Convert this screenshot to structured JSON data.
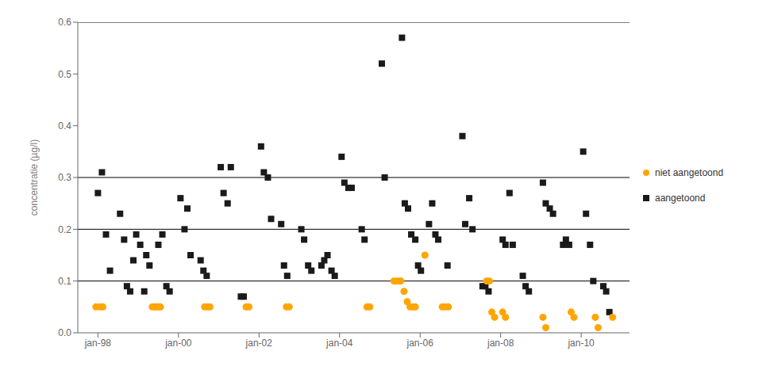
{
  "chart_data": {
    "type": "scatter",
    "y_label": "concentratie (µg/l)",
    "xlim": [
      1997.5,
      2011.2
    ],
    "xticks": [
      {
        "value": 1998,
        "label": "jan-98"
      },
      {
        "value": 2000,
        "label": "jan-00"
      },
      {
        "value": 2002,
        "label": "jan-02"
      },
      {
        "value": 2004,
        "label": "jan-04"
      },
      {
        "value": 2006,
        "label": "jan-06"
      },
      {
        "value": 2008,
        "label": "jan-08"
      },
      {
        "value": 2010,
        "label": "jan-10"
      }
    ],
    "ylim": [
      0,
      0.6
    ],
    "yticks": [
      {
        "value": 0,
        "label": "0.0"
      },
      0.1,
      0.2,
      0.3,
      0.4,
      0.5,
      0.6
    ],
    "hlines": [
      0.1,
      0.2,
      0.3,
      0.6
    ],
    "grid": false,
    "legend": "right",
    "series": [
      {
        "name": "aangetoond",
        "color": "#1a1a1a",
        "marker": "square",
        "x": [
          1998.0,
          1998.1,
          1998.2,
          1998.3,
          1998.55,
          1998.65,
          1998.72,
          1998.8,
          1998.88,
          1998.95,
          1999.05,
          1999.15,
          1999.2,
          1999.28,
          1999.5,
          1999.6,
          1999.7,
          1999.78,
          2000.05,
          2000.15,
          2000.22,
          2000.3,
          2000.55,
          2000.62,
          2000.7,
          2001.05,
          2001.12,
          2001.22,
          2001.3,
          2001.55,
          2001.62,
          2002.05,
          2002.12,
          2002.22,
          2002.3,
          2002.55,
          2002.62,
          2002.7,
          2003.05,
          2003.12,
          2003.22,
          2003.3,
          2003.55,
          2003.62,
          2003.7,
          2003.8,
          2003.88,
          2004.05,
          2004.12,
          2004.22,
          2004.3,
          2004.55,
          2004.62,
          2005.05,
          2005.12,
          2005.55,
          2005.62,
          2005.7,
          2005.78,
          2005.88,
          2005.95,
          2006.02,
          2006.22,
          2006.3,
          2006.38,
          2006.45,
          2006.68,
          2007.05,
          2007.12,
          2007.22,
          2007.3,
          2007.55,
          2007.62,
          2007.7,
          2008.05,
          2008.12,
          2008.22,
          2008.3,
          2008.55,
          2008.62,
          2008.7,
          2009.05,
          2009.12,
          2009.22,
          2009.3,
          2009.55,
          2009.62,
          2009.7,
          2010.05,
          2010.12,
          2010.22,
          2010.3,
          2010.55,
          2010.62,
          2010.7
        ],
        "values": [
          0.27,
          0.31,
          0.19,
          0.12,
          0.23,
          0.18,
          0.09,
          0.08,
          0.14,
          0.19,
          0.17,
          0.08,
          0.15,
          0.13,
          0.17,
          0.19,
          0.09,
          0.08,
          0.26,
          0.2,
          0.24,
          0.15,
          0.14,
          0.12,
          0.11,
          0.32,
          0.27,
          0.25,
          0.32,
          0.07,
          0.07,
          0.36,
          0.31,
          0.3,
          0.22,
          0.21,
          0.13,
          0.11,
          0.2,
          0.18,
          0.13,
          0.12,
          0.13,
          0.14,
          0.15,
          0.12,
          0.11,
          0.34,
          0.29,
          0.28,
          0.28,
          0.2,
          0.18,
          0.52,
          0.3,
          0.57,
          0.25,
          0.24,
          0.19,
          0.18,
          0.13,
          0.12,
          0.21,
          0.25,
          0.19,
          0.18,
          0.13,
          0.38,
          0.21,
          0.26,
          0.2,
          0.09,
          0.09,
          0.08,
          0.18,
          0.17,
          0.27,
          0.17,
          0.11,
          0.09,
          0.08,
          0.29,
          0.25,
          0.24,
          0.23,
          0.17,
          0.18,
          0.17,
          0.35,
          0.23,
          0.17,
          0.1,
          0.09,
          0.08,
          0.04
        ]
      },
      {
        "name": "niet aangetoond",
        "color": "#FFA500",
        "marker": "circle",
        "x": [
          1997.95,
          1998.05,
          1998.12,
          1999.35,
          1999.42,
          1999.45,
          1999.5,
          1999.55,
          2000.65,
          2000.72,
          2000.78,
          2001.68,
          2001.75,
          2002.68,
          2002.75,
          2004.68,
          2004.75,
          2005.35,
          2005.42,
          2005.48,
          2005.52,
          2005.6,
          2005.68,
          2005.75,
          2005.82,
          2005.88,
          2006.12,
          2006.55,
          2006.62,
          2006.7,
          2007.65,
          2007.72,
          2007.78,
          2007.85,
          2008.05,
          2008.12,
          2009.05,
          2009.12,
          2009.75,
          2009.82,
          2010.35,
          2010.42,
          2010.78
        ],
        "values": [
          0.05,
          0.05,
          0.05,
          0.05,
          0.05,
          0.05,
          0.05,
          0.05,
          0.05,
          0.05,
          0.05,
          0.05,
          0.05,
          0.05,
          0.05,
          0.05,
          0.05,
          0.1,
          0.1,
          0.1,
          0.1,
          0.08,
          0.06,
          0.05,
          0.05,
          0.05,
          0.15,
          0.05,
          0.05,
          0.05,
          0.1,
          0.1,
          0.04,
          0.03,
          0.04,
          0.03,
          0.03,
          0.01,
          0.04,
          0.03,
          0.03,
          0.01,
          0.03
        ]
      }
    ]
  }
}
